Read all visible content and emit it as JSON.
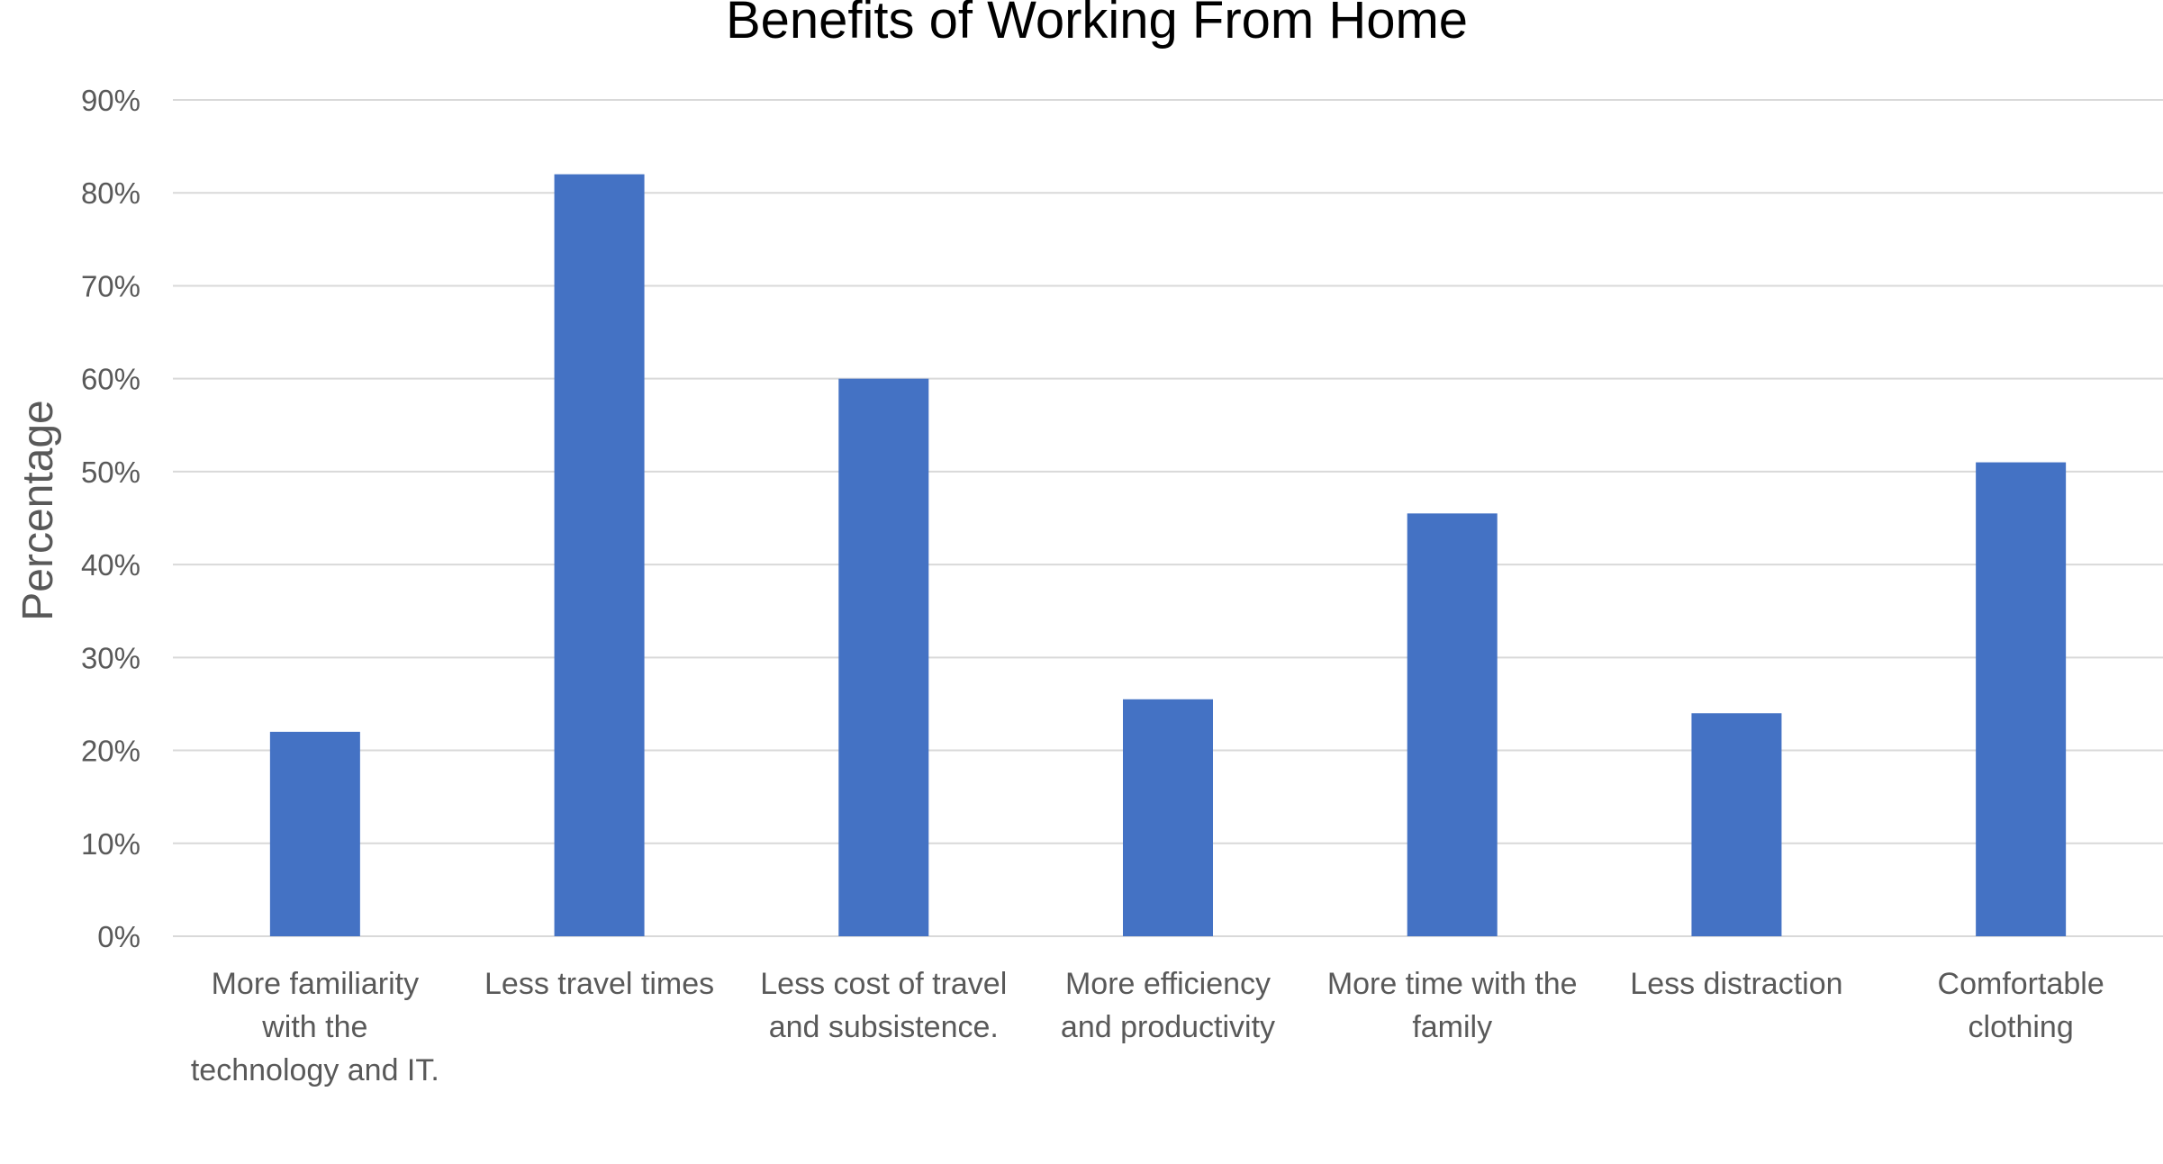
{
  "chart_data": {
    "type": "bar",
    "title": "Benefits of Working From Home",
    "xlabel": "",
    "ylabel": "Percentage",
    "ylim": [
      0,
      90
    ],
    "y_tick_step": 10,
    "y_tick_format": "percent",
    "y_ticks": [
      "0%",
      "10%",
      "20%",
      "30%",
      "40%",
      "50%",
      "60%",
      "70%",
      "80%",
      "90%"
    ],
    "grid": true,
    "legend": "none",
    "bar_color": "#4472c4",
    "categories": [
      [
        "More familiarity",
        "with the",
        "technology and IT."
      ],
      [
        "Less travel times"
      ],
      [
        "Less cost of travel",
        "and subsistence."
      ],
      [
        "More efficiency",
        "and productivity"
      ],
      [
        "More time with the",
        "family"
      ],
      [
        "Less distraction"
      ],
      [
        "Comfortable",
        "clothing"
      ]
    ],
    "values": [
      22,
      82,
      60,
      25.5,
      45.5,
      24,
      51
    ]
  }
}
